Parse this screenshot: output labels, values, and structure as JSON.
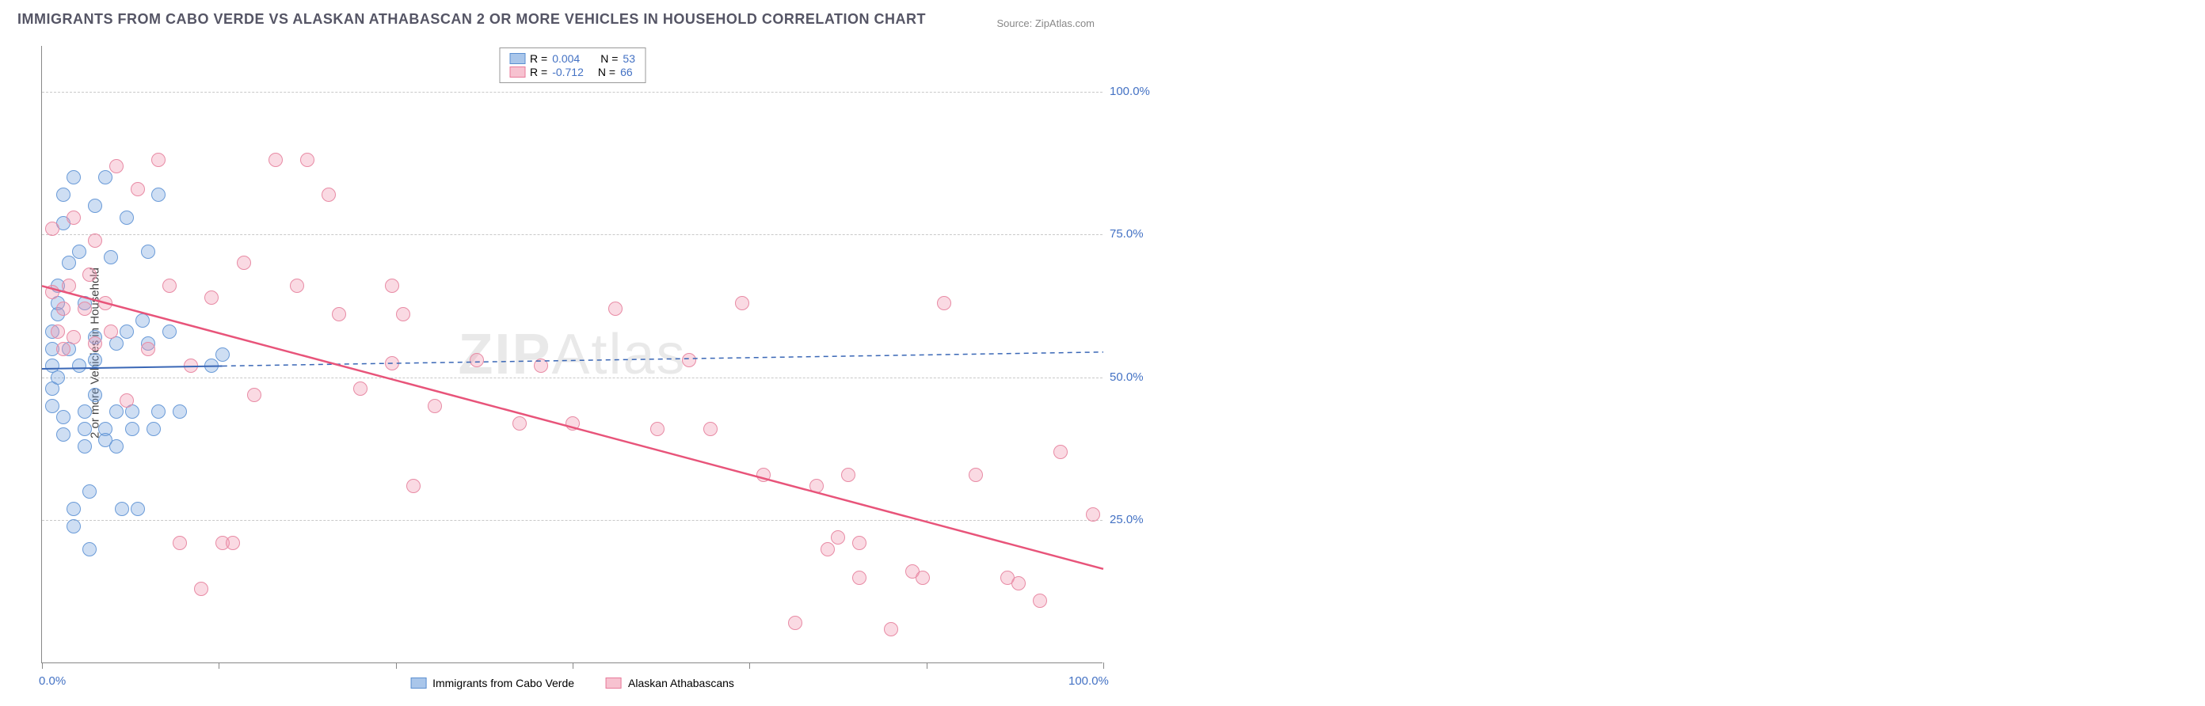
{
  "title": "IMMIGRANTS FROM CABO VERDE VS ALASKAN ATHABASCAN 2 OR MORE VEHICLES IN HOUSEHOLD CORRELATION CHART",
  "source": "Source: ZipAtlas.com",
  "watermark_a": "ZIP",
  "watermark_b": "Atlas",
  "chart": {
    "type": "scatter",
    "background_color": "#ffffff",
    "grid_color": "#c9c9c9",
    "grid_dash": "dashed",
    "ylabel": "2 or more Vehicles in Household",
    "label_fontsize": 15,
    "label_color": "#444444",
    "xlim": [
      0,
      100
    ],
    "ylim": [
      0,
      108
    ],
    "ytick_values": [
      25,
      50,
      75,
      100
    ],
    "ytick_labels": [
      "25.0%",
      "50.0%",
      "75.0%",
      "100.0%"
    ],
    "xtick_values": [
      0,
      16.67,
      33.33,
      50,
      66.67,
      83.33,
      100
    ],
    "xtick_labels_show": {
      "0": "0.0%",
      "100": "100.0%"
    },
    "tick_label_color": "#4472c4",
    "marker_radius": 9,
    "marker_fill_opacity": 0.35,
    "marker_stroke_width": 1.5,
    "series": [
      {
        "name": "Immigrants from Cabo Verde",
        "color_fill": "rgba(115,160,220,0.35)",
        "color_stroke": "#6a9bd8",
        "swatch_fill": "#a9c6ea",
        "swatch_border": "#5b8fd0",
        "R": "0.004",
        "N": "53",
        "trend": {
          "x1": 0,
          "y1": 51.5,
          "x2": 17,
          "y2": 52,
          "dash_tail_to_x": 100,
          "color": "#3a67b6",
          "width": 2
        },
        "points": [
          [
            1,
            52
          ],
          [
            1,
            55
          ],
          [
            1,
            58
          ],
          [
            1,
            48
          ],
          [
            1,
            45
          ],
          [
            1.5,
            61
          ],
          [
            1.5,
            63
          ],
          [
            1.5,
            66
          ],
          [
            1.5,
            50
          ],
          [
            2,
            77
          ],
          [
            2,
            82
          ],
          [
            2,
            40
          ],
          [
            2,
            43
          ],
          [
            2.5,
            70
          ],
          [
            2.5,
            55
          ],
          [
            3,
            85
          ],
          [
            3,
            27
          ],
          [
            3,
            24
          ],
          [
            3.5,
            72
          ],
          [
            3.5,
            52
          ],
          [
            4,
            63
          ],
          [
            4,
            44
          ],
          [
            4,
            41
          ],
          [
            4,
            38
          ],
          [
            4.5,
            30
          ],
          [
            4.5,
            20
          ],
          [
            5,
            80
          ],
          [
            5,
            57
          ],
          [
            5,
            53
          ],
          [
            5,
            47
          ],
          [
            6,
            85
          ],
          [
            6,
            41
          ],
          [
            6,
            39
          ],
          [
            6.5,
            71
          ],
          [
            7,
            56
          ],
          [
            7,
            44
          ],
          [
            7,
            38
          ],
          [
            7.5,
            27
          ],
          [
            8,
            78
          ],
          [
            8,
            58
          ],
          [
            8.5,
            41
          ],
          [
            8.5,
            44
          ],
          [
            9,
            27
          ],
          [
            9.5,
            60
          ],
          [
            10,
            72
          ],
          [
            10,
            56
          ],
          [
            10.5,
            41
          ],
          [
            11,
            82
          ],
          [
            11,
            44
          ],
          [
            12,
            58
          ],
          [
            13,
            44
          ],
          [
            16,
            52
          ],
          [
            17,
            54
          ]
        ]
      },
      {
        "name": "Alaskan Athabascans",
        "color_fill": "rgba(240,150,175,0.35)",
        "color_stroke": "#e88ba5",
        "swatch_fill": "#f7c2d0",
        "swatch_border": "#e87a9a",
        "R": "-0.712",
        "N": "66",
        "trend": {
          "x1": 0,
          "y1": 66,
          "x2": 100,
          "y2": 16.5,
          "color": "#e8547a",
          "width": 2.5
        },
        "points": [
          [
            1,
            76
          ],
          [
            1,
            65
          ],
          [
            1.5,
            58
          ],
          [
            2,
            62
          ],
          [
            2,
            55
          ],
          [
            2.5,
            66
          ],
          [
            3,
            78
          ],
          [
            3,
            57
          ],
          [
            4,
            62
          ],
          [
            4.5,
            68
          ],
          [
            5,
            74
          ],
          [
            5,
            56
          ],
          [
            6,
            63
          ],
          [
            6.5,
            58
          ],
          [
            7,
            87
          ],
          [
            8,
            46
          ],
          [
            9,
            83
          ],
          [
            10,
            55
          ],
          [
            11,
            88
          ],
          [
            12,
            66
          ],
          [
            13,
            21
          ],
          [
            14,
            52
          ],
          [
            15,
            13
          ],
          [
            16,
            64
          ],
          [
            17,
            21
          ],
          [
            18,
            21
          ],
          [
            19,
            70
          ],
          [
            20,
            47
          ],
          [
            22,
            88
          ],
          [
            24,
            66
          ],
          [
            25,
            88
          ],
          [
            27,
            82
          ],
          [
            28,
            61
          ],
          [
            30,
            48
          ],
          [
            33,
            66
          ],
          [
            33,
            52.5
          ],
          [
            34,
            61
          ],
          [
            35,
            31
          ],
          [
            37,
            45
          ],
          [
            41,
            53
          ],
          [
            45,
            42
          ],
          [
            47,
            52
          ],
          [
            50,
            42
          ],
          [
            54,
            62
          ],
          [
            58,
            41
          ],
          [
            61,
            53
          ],
          [
            63,
            41
          ],
          [
            66,
            63
          ],
          [
            68,
            33
          ],
          [
            71,
            7
          ],
          [
            73,
            31
          ],
          [
            74,
            20
          ],
          [
            75,
            22
          ],
          [
            76,
            33
          ],
          [
            77,
            15
          ],
          [
            77,
            21
          ],
          [
            80,
            6
          ],
          [
            82,
            16
          ],
          [
            83,
            15
          ],
          [
            85,
            63
          ],
          [
            88,
            33
          ],
          [
            91,
            15
          ],
          [
            92,
            14
          ],
          [
            94,
            11
          ],
          [
            96,
            37
          ],
          [
            99,
            26
          ]
        ]
      }
    ]
  },
  "legend_labels": {
    "R_eq": "R = ",
    "N_eq": "N = "
  }
}
